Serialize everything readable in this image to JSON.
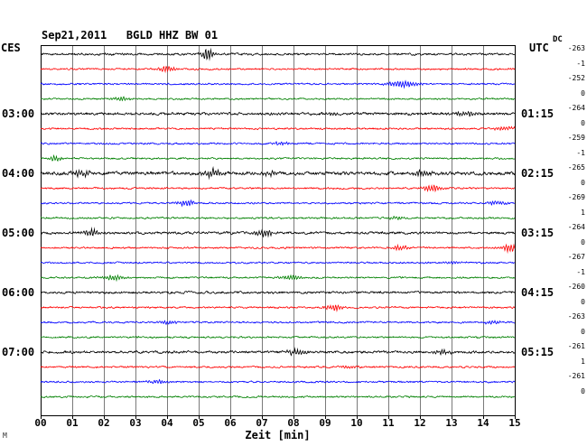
{
  "chart_data": {
    "type": "line",
    "subtype": "seismogram-dayplot",
    "title": "Sep21,2011   BGLD HHZ BW 01",
    "date": "Sep21,2011",
    "station": "BGLD HHZ BW 01",
    "xlabel": "Zeit [min]",
    "xlim": [
      0,
      15
    ],
    "minutes_per_line": 15,
    "x_ticks": [
      "00",
      "01",
      "02",
      "03",
      "04",
      "05",
      "06",
      "07",
      "08",
      "09",
      "10",
      "11",
      "12",
      "13",
      "14",
      "15"
    ],
    "left_timezone": "CES",
    "right_timezone": "UTC",
    "dc_header": "DC",
    "grid": true,
    "trace_colors_cycle": [
      "#000000",
      "#ff0000",
      "#0000ff",
      "#008000"
    ],
    "corner_mark": "M",
    "traces": [
      {
        "color": "#000000",
        "ces_start": "02:00",
        "dc": -263,
        "left_label": "",
        "right_label": "",
        "noise": 1.2,
        "events": [
          {
            "min": 5.3,
            "amp": 7,
            "width": 0.22
          },
          {
            "min": 2.1,
            "amp": 1.5,
            "width": 0.2
          }
        ]
      },
      {
        "color": "#ff0000",
        "ces_start": "02:15",
        "dc": -1,
        "left_label": "",
        "right_label": "",
        "noise": 1.0,
        "events": [
          {
            "min": 4.0,
            "amp": 3.5,
            "width": 0.3
          }
        ]
      },
      {
        "color": "#0000ff",
        "ces_start": "02:30",
        "dc": -252,
        "left_label": "",
        "right_label": "",
        "noise": 1.0,
        "events": [
          {
            "min": 11.5,
            "amp": 3.5,
            "width": 0.5
          }
        ]
      },
      {
        "color": "#008000",
        "ces_start": "02:45",
        "dc": 0,
        "left_label": "",
        "right_label": "",
        "noise": 1.0,
        "events": [
          {
            "min": 2.55,
            "amp": 2,
            "width": 0.3
          }
        ]
      },
      {
        "color": "#000000",
        "ces_start": "03:00",
        "dc": -264,
        "left_label": "03:00",
        "right_label": "01:15",
        "noise": 1.5,
        "events": [
          {
            "min": 13.5,
            "amp": 2.5,
            "width": 0.5
          },
          {
            "min": 9.2,
            "amp": 1.8,
            "width": 0.3
          }
        ]
      },
      {
        "color": "#ff0000",
        "ces_start": "03:15",
        "dc": 0,
        "left_label": "",
        "right_label": "",
        "noise": 1.0,
        "events": [
          {
            "min": 14.7,
            "amp": 3,
            "width": 0.3
          }
        ]
      },
      {
        "color": "#0000ff",
        "ces_start": "03:30",
        "dc": -259,
        "left_label": "",
        "right_label": "",
        "noise": 1.0,
        "events": [
          {
            "min": 7.6,
            "amp": 1.8,
            "width": 0.3
          }
        ]
      },
      {
        "color": "#008000",
        "ces_start": "03:45",
        "dc": -1,
        "left_label": "",
        "right_label": "",
        "noise": 1.0,
        "events": [
          {
            "min": 0.45,
            "amp": 3,
            "width": 0.22
          }
        ]
      },
      {
        "color": "#000000",
        "ces_start": "04:00",
        "dc": -265,
        "left_label": "04:00",
        "right_label": "02:15",
        "noise": 1.9,
        "events": [
          {
            "min": 1.3,
            "amp": 3.5,
            "width": 0.3
          },
          {
            "min": 5.45,
            "amp": 4.5,
            "width": 0.3
          },
          {
            "min": 7.3,
            "amp": 2.5,
            "width": 0.3
          },
          {
            "min": 12.1,
            "amp": 3.5,
            "width": 0.3
          }
        ]
      },
      {
        "color": "#ff0000",
        "ces_start": "04:15",
        "dc": 0,
        "left_label": "",
        "right_label": "",
        "noise": 1.0,
        "events": [
          {
            "min": 12.4,
            "amp": 4,
            "width": 0.28
          }
        ]
      },
      {
        "color": "#0000ff",
        "ces_start": "04:30",
        "dc": -269,
        "left_label": "",
        "right_label": "",
        "noise": 1.0,
        "events": [
          {
            "min": 4.6,
            "amp": 3.5,
            "width": 0.28
          },
          {
            "min": 14.4,
            "amp": 2.5,
            "width": 0.3
          }
        ]
      },
      {
        "color": "#008000",
        "ces_start": "04:45",
        "dc": 1,
        "left_label": "",
        "right_label": "",
        "noise": 1.0,
        "events": [
          {
            "min": 11.3,
            "amp": 2,
            "width": 0.3
          }
        ]
      },
      {
        "color": "#000000",
        "ces_start": "05:00",
        "dc": -264,
        "left_label": "05:00",
        "right_label": "03:15",
        "noise": 1.4,
        "events": [
          {
            "min": 1.6,
            "amp": 4.5,
            "width": 0.3
          },
          {
            "min": 7.1,
            "amp": 4,
            "width": 0.3
          }
        ]
      },
      {
        "color": "#ff0000",
        "ces_start": "05:15",
        "dc": 0,
        "left_label": "",
        "right_label": "",
        "noise": 1.0,
        "events": [
          {
            "min": 14.85,
            "amp": 5.5,
            "width": 0.22
          },
          {
            "min": 11.4,
            "amp": 2.5,
            "width": 0.3
          }
        ]
      },
      {
        "color": "#0000ff",
        "ces_start": "05:30",
        "dc": -267,
        "left_label": "",
        "right_label": "",
        "noise": 1.0,
        "events": [
          {
            "min": 13.0,
            "amp": 1.8,
            "width": 0.3
          }
        ]
      },
      {
        "color": "#008000",
        "ces_start": "05:45",
        "dc": -1,
        "left_label": "",
        "right_label": "",
        "noise": 1.0,
        "events": [
          {
            "min": 2.3,
            "amp": 3,
            "width": 0.3
          },
          {
            "min": 7.9,
            "amp": 3,
            "width": 0.3
          }
        ]
      },
      {
        "color": "#000000",
        "ces_start": "06:00",
        "dc": -260,
        "left_label": "06:00",
        "right_label": "04:15",
        "noise": 1.3,
        "events": []
      },
      {
        "color": "#ff0000",
        "ces_start": "06:15",
        "dc": 0,
        "left_label": "",
        "right_label": "",
        "noise": 1.0,
        "events": [
          {
            "min": 9.3,
            "amp": 4,
            "width": 0.3
          }
        ]
      },
      {
        "color": "#0000ff",
        "ces_start": "06:30",
        "dc": -263,
        "left_label": "",
        "right_label": "",
        "noise": 1.0,
        "events": [
          {
            "min": 4.0,
            "amp": 2.5,
            "width": 0.3
          },
          {
            "min": 14.3,
            "amp": 2,
            "width": 0.3
          }
        ]
      },
      {
        "color": "#008000",
        "ces_start": "06:45",
        "dc": 0,
        "left_label": "",
        "right_label": "",
        "noise": 1.0,
        "events": []
      },
      {
        "color": "#000000",
        "ces_start": "07:00",
        "dc": -261,
        "left_label": "07:00",
        "right_label": "05:15",
        "noise": 1.4,
        "events": [
          {
            "min": 8.1,
            "amp": 3.5,
            "width": 0.3
          },
          {
            "min": 12.7,
            "amp": 2.5,
            "width": 0.3
          }
        ]
      },
      {
        "color": "#ff0000",
        "ces_start": "07:15",
        "dc": 1,
        "left_label": "",
        "right_label": "",
        "noise": 1.0,
        "events": [
          {
            "min": 9.8,
            "amp": 2,
            "width": 0.3
          }
        ]
      },
      {
        "color": "#0000ff",
        "ces_start": "07:30",
        "dc": -261,
        "left_label": "",
        "right_label": "",
        "noise": 1.0,
        "events": [
          {
            "min": 3.7,
            "amp": 2.5,
            "width": 0.3
          }
        ]
      },
      {
        "color": "#008000",
        "ces_start": "07:45",
        "dc": 0,
        "left_label": "",
        "right_label": "",
        "noise": 1.0,
        "events": []
      }
    ]
  }
}
